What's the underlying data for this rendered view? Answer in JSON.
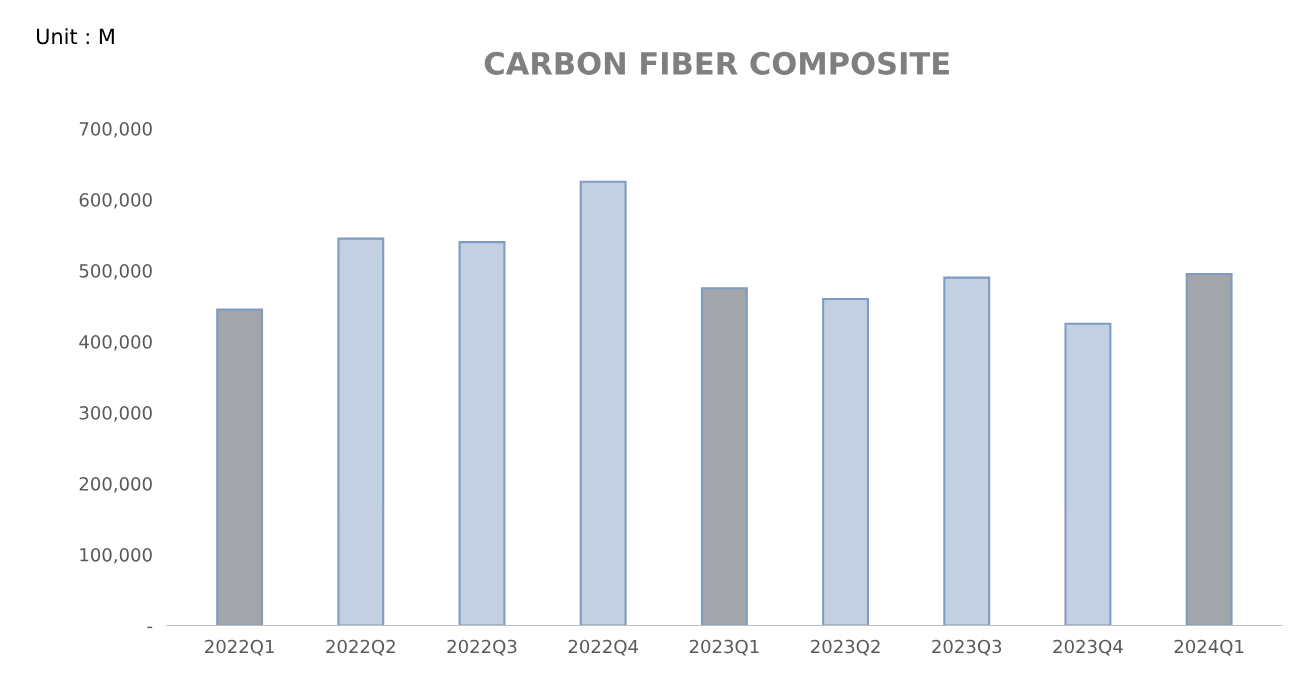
{
  "chart_data": {
    "type": "bar",
    "title": "CARBON FIBER COMPOSITE",
    "annotations": [
      "Unit : M"
    ],
    "categories": [
      "2022Q1",
      "2022Q2",
      "2022Q3",
      "2022Q4",
      "2023Q1",
      "2023Q2",
      "2023Q3",
      "2023Q4",
      "2024Q1"
    ],
    "values": [
      445000,
      545000,
      540000,
      625000,
      475000,
      460000,
      490000,
      425000,
      495000
    ],
    "colors": [
      "#a2a5aa",
      "#c3d0e2",
      "#c3d0e2",
      "#c3d0e2",
      "#a2a5aa",
      "#c3d0e2",
      "#c3d0e2",
      "#c3d0e2",
      "#a2a5aa"
    ],
    "ylim": [
      0,
      700000
    ],
    "yticks": [
      {
        "value": 0,
        "label": "-"
      },
      {
        "value": 100000,
        "label": "100,000"
      },
      {
        "value": 200000,
        "label": "200,000"
      },
      {
        "value": 300000,
        "label": "300,000"
      },
      {
        "value": 400000,
        "label": "400,000"
      },
      {
        "value": 500000,
        "label": "500,000"
      },
      {
        "value": 600000,
        "label": "600,000"
      },
      {
        "value": 700000,
        "label": "700,000"
      }
    ],
    "grid": false
  }
}
